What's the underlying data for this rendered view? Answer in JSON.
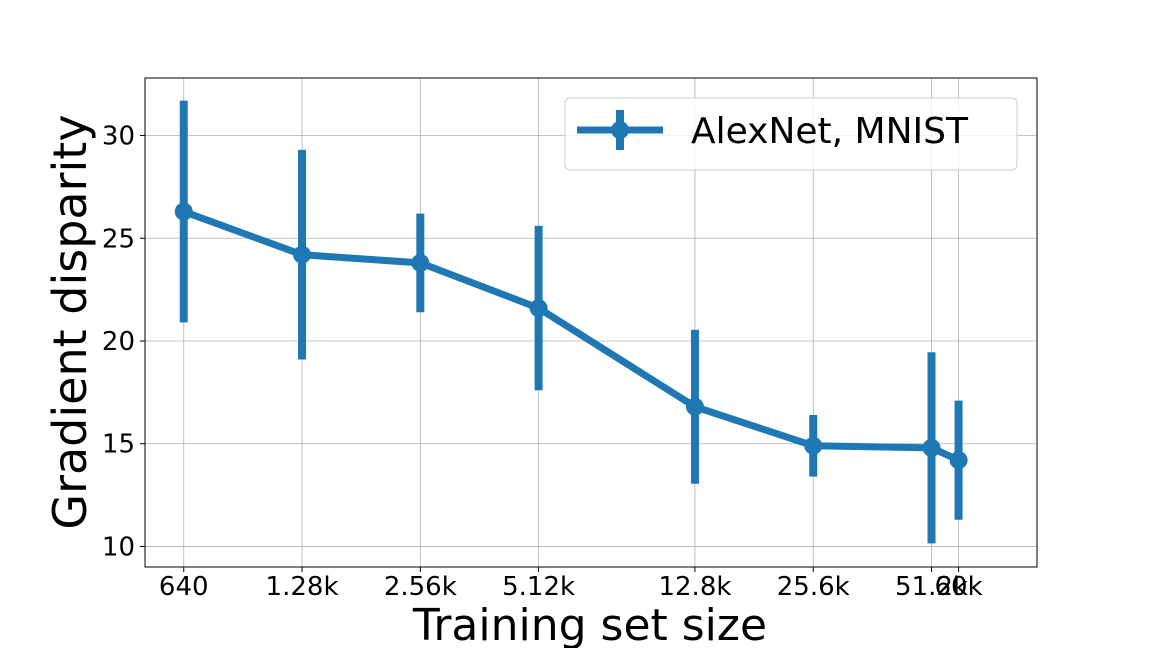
{
  "chart_data": {
    "type": "errorbar-line",
    "xlabel": "Training set size",
    "ylabel": "Gradient disparity",
    "x": [
      640,
      1280,
      2560,
      5120,
      12800,
      25600,
      51200,
      60000
    ],
    "series": [
      {
        "name": "AlexNet, MNIST",
        "color": "#1f77b4",
        "values": [
          26.3,
          24.2,
          23.8,
          21.6,
          16.8,
          14.9,
          14.8,
          14.2
        ],
        "errors": [
          5.4,
          5.1,
          2.4,
          4.0,
          3.75,
          1.5,
          4.65,
          2.9
        ]
      }
    ],
    "xscale": "log",
    "xlim": [
      510,
      95000
    ],
    "xticks": [
      640,
      {
        "value": 1280,
        "label": "1.28k"
      },
      {
        "value": 2560,
        "label": "2.56k"
      },
      {
        "value": 5120,
        "label": "5.12k"
      },
      {
        "value": 12800,
        "label": "12.8k"
      },
      {
        "value": 25600,
        "label": "25.6k"
      },
      {
        "value": 51200,
        "label": "51.2k"
      },
      {
        "value": 60000,
        "label": "60k"
      }
    ],
    "ylim": [
      9.0,
      32.8
    ],
    "yticks": [
      10,
      15,
      20,
      25,
      30
    ],
    "grid": true,
    "legend": "upper right"
  }
}
